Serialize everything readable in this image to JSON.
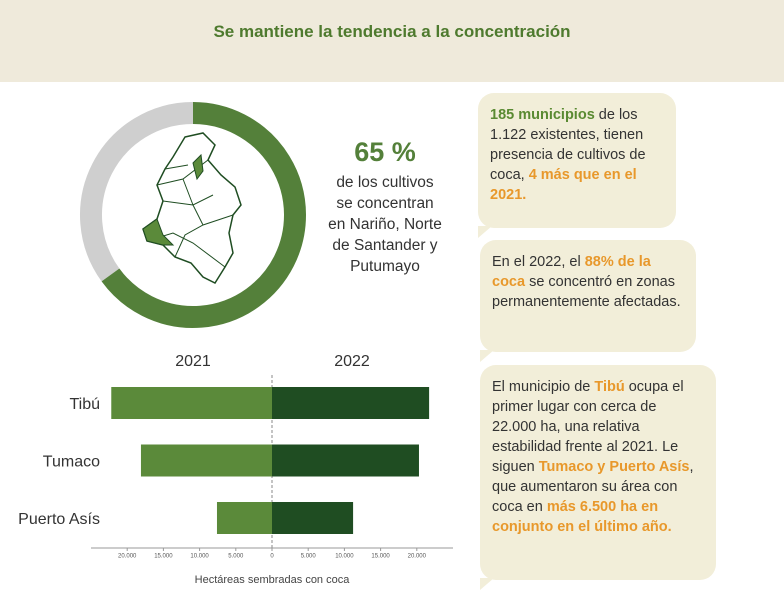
{
  "header": {
    "title": "Se mantiene la tendencia a la concentración"
  },
  "chart_data": [
    {
      "type": "donut",
      "values": [
        65,
        35
      ],
      "value_labels": [
        "65 %",
        null
      ],
      "colors": [
        "#54803a",
        "#cfcfcf"
      ],
      "caption_lines": [
        "de los cultivos",
        "se concentran",
        "en Nariño, Norte",
        "de Santander y",
        "Putumayo"
      ]
    },
    {
      "type": "diverging-bar",
      "categories": [
        "Tibú",
        "Tumaco",
        "Puerto Asís"
      ],
      "series": [
        {
          "name": "2021",
          "color": "#5b8a3a",
          "values": [
            22200,
            18100,
            7600
          ]
        },
        {
          "name": "2022",
          "color": "#1f4d22",
          "values": [
            21700,
            20300,
            11200
          ]
        }
      ],
      "xlim": [
        0,
        25000
      ],
      "xticks": [
        {
          "value": 20000,
          "label": "20.000"
        },
        {
          "value": 15000,
          "label": "15.000"
        },
        {
          "value": 10000,
          "label": "10.000"
        },
        {
          "value": 5000,
          "label": "5.000"
        },
        0
      ],
      "x2ticks": [
        {
          "value": 5000,
          "label": "5.000"
        },
        {
          "value": 10000,
          "label": "10.000"
        },
        {
          "value": 15000,
          "label": "15.000"
        },
        {
          "value": 20000,
          "label": "20.000"
        }
      ],
      "xlabel": "Hectáreas sembradas con coca"
    }
  ],
  "callouts": [
    {
      "runs": [
        {
          "text": "185 municipios",
          "style": "green"
        },
        {
          "text": " de los 1.122 existentes, tienen presencia de cultivos de coca, ",
          "style": "plain"
        },
        {
          "text": "4 más que en el 2021.",
          "style": "orange"
        }
      ]
    },
    {
      "runs": [
        {
          "text": "En el 2022, el ",
          "style": "plain"
        },
        {
          "text": "88% de la coca",
          "style": "orange"
        },
        {
          "text": " se concentró en zonas permanentemente afectadas.",
          "style": "plain"
        }
      ]
    },
    {
      "runs": [
        {
          "text": "El municipio de ",
          "style": "plain"
        },
        {
          "text": "Tibú",
          "style": "orange"
        },
        {
          "text": " ocupa el primer lugar con cerca de 22.000 ha, una relativa estabilidad frente al 2021. Le siguen ",
          "style": "plain"
        },
        {
          "text": "Tumaco y Puerto Asís",
          "style": "orange"
        },
        {
          "text": ", que aumentaron su área con coca en ",
          "style": "plain"
        },
        {
          "text": "más 6.500 ha en conjunto en el último año.",
          "style": "orange"
        }
      ]
    }
  ]
}
